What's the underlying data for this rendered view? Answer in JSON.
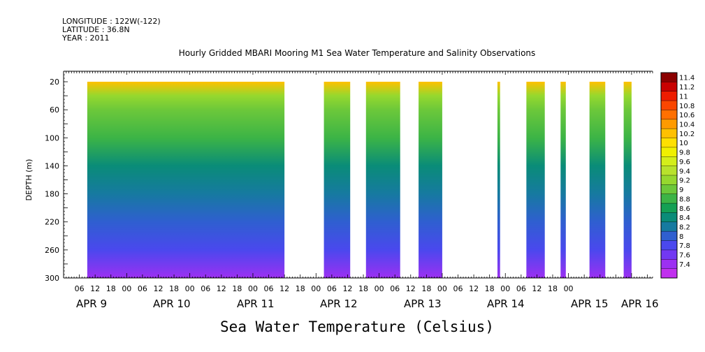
{
  "header": {
    "longitude": "LONGITUDE : 122W(-122)",
    "latitude": "LATITUDE : 36.8N",
    "year": "YEAR : 2011"
  },
  "chart_data": {
    "type": "heatmap",
    "title": "Hourly Gridded MBARI Mooring M1 Sea Water Temperature and Salinity Observations",
    "xlabel": "",
    "ylabel": "DEPTH (m)",
    "caption": "Sea Water Temperature (Celsius)",
    "y_ticks": [
      20,
      60,
      100,
      140,
      180,
      220,
      260,
      300
    ],
    "ylim": [
      300,
      5
    ],
    "x_hour_ticks": [
      "06",
      "12",
      "18",
      "00",
      "06",
      "12",
      "18",
      "00",
      "06",
      "12",
      "18",
      "00",
      "06",
      "12",
      "18",
      "00",
      "06",
      "12",
      "18",
      "00",
      "06",
      "12",
      "18",
      "00",
      "06",
      "12",
      "18",
      "00",
      "06",
      "12",
      "18",
      "00"
    ],
    "x_date_labels": [
      "APR  9",
      "APR 10",
      "APR 11",
      "APR 12",
      "APR 13",
      "APR 14",
      "APR 15",
      "APR 16"
    ],
    "time_start": "APR 9 00:00",
    "data_segments_hours": [
      [
        9,
        84
      ],
      [
        99,
        109
      ],
      [
        115,
        128
      ],
      [
        135,
        144
      ],
      [
        165,
        166
      ],
      [
        176,
        183
      ],
      [
        189,
        191
      ],
      [
        200,
        206
      ],
      [
        213,
        216
      ]
    ],
    "depth_profile": {
      "depths": [
        20,
        40,
        60,
        100,
        140,
        180,
        220,
        260,
        300
      ],
      "temperatures": [
        10.2,
        9.3,
        9.1,
        8.85,
        8.5,
        8.3,
        8.1,
        7.8,
        7.5
      ]
    },
    "colorbar": {
      "levels": [
        "11.4",
        "11.2",
        "11",
        "10.8",
        "10.6",
        "10.4",
        "10.2",
        "10",
        "9.8",
        "9.6",
        "9.4",
        "9.2",
        "9",
        "8.8",
        "8.6",
        "8.4",
        "8.2",
        "8",
        "7.8",
        "7.6",
        "7.4"
      ],
      "colors": [
        "#8b0000",
        "#c80000",
        "#ee1c00",
        "#fa4600",
        "#ff7000",
        "#ff9a00",
        "#ffc000",
        "#ffe000",
        "#f0f000",
        "#d4ee1a",
        "#b8e22c",
        "#96d82e",
        "#6cc83a",
        "#3cb446",
        "#14a054",
        "#0a8c78",
        "#167aa0",
        "#2f5fd0",
        "#4a48ee",
        "#7238f2",
        "#9c30f2",
        "#c030ee"
      ]
    }
  }
}
